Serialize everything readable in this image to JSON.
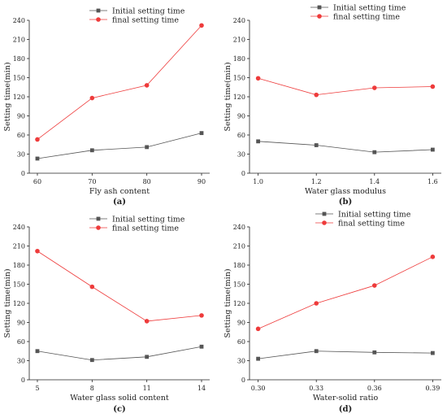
{
  "colors": {
    "initial": "#555555",
    "final": "#ee3b3b"
  },
  "chart_data": [
    {
      "type": "line",
      "panel_label": "(a)",
      "xlabel": "Fly ash content",
      "ylabel": "Setting time(min)",
      "x_ticks": [
        "60",
        "70",
        "80",
        "90"
      ],
      "ylim": [
        0,
        240
      ],
      "y_ticks": [
        "0",
        "30",
        "60",
        "90",
        "120",
        "150",
        "180",
        "210",
        "240"
      ],
      "legend_position": "top",
      "series": [
        {
          "name": "Initial setting time",
          "marker": "square",
          "values": [
            23,
            36,
            41,
            63
          ]
        },
        {
          "name": "final setting time",
          "marker": "circle",
          "values": [
            53,
            118,
            138,
            232
          ]
        }
      ]
    },
    {
      "type": "line",
      "panel_label": "(b)",
      "xlabel": "Water glass modulus",
      "ylabel": "Setting time(min)",
      "x_ticks": [
        "1.0",
        "1.2",
        "1.4",
        "1.6"
      ],
      "ylim": [
        0,
        240
      ],
      "y_ticks": [
        "0",
        "30",
        "60",
        "90",
        "120",
        "150",
        "180",
        "210",
        "240"
      ],
      "legend_position": "top",
      "series": [
        {
          "name": "Initial setting time",
          "marker": "square",
          "values": [
            50,
            44,
            33,
            37
          ]
        },
        {
          "name": "final setting time",
          "marker": "circle",
          "values": [
            149,
            123,
            134,
            136
          ]
        }
      ]
    },
    {
      "type": "line",
      "panel_label": "(c)",
      "xlabel": "Water glass solid content",
      "ylabel": "Setting time(min)",
      "x_ticks": [
        "5",
        "8",
        "11",
        "14"
      ],
      "ylim": [
        0,
        240
      ],
      "y_ticks": [
        "0",
        "30",
        "60",
        "90",
        "120",
        "150",
        "180",
        "210",
        "240"
      ],
      "legend_position": "top",
      "series": [
        {
          "name": "Initial setting time",
          "marker": "square",
          "values": [
            45,
            31,
            36,
            52
          ]
        },
        {
          "name": "final setting time",
          "marker": "circle",
          "values": [
            202,
            146,
            92,
            101
          ]
        }
      ]
    },
    {
      "type": "line",
      "panel_label": "(d)",
      "xlabel": "Water-solid ratio",
      "ylabel": "Setting time(min)",
      "x_ticks": [
        "0.30",
        "0.33",
        "0.36",
        "0.39"
      ],
      "ylim": [
        0,
        240
      ],
      "y_ticks": [
        "0",
        "30",
        "60",
        "90",
        "120",
        "150",
        "180",
        "210",
        "240"
      ],
      "legend_position": "top",
      "series": [
        {
          "name": "Initial setting time",
          "marker": "square",
          "values": [
            33,
            45,
            43,
            42
          ]
        },
        {
          "name": "final setting time",
          "marker": "circle",
          "values": [
            80,
            120,
            148,
            193
          ]
        }
      ]
    }
  ]
}
